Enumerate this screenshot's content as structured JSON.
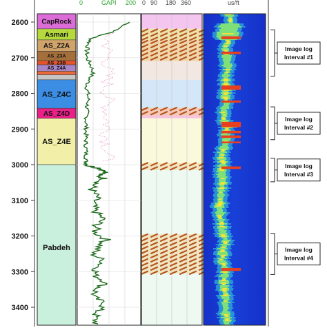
{
  "header": {
    "partial_tokens": [
      "0",
      "GAPI",
      "200",
      "0",
      "90",
      "180",
      "360",
      "us/ft"
    ]
  },
  "chart_data": {
    "type": "well-log",
    "depth_axis": {
      "ticks": [
        2600,
        2700,
        2800,
        2900,
        3000,
        3100,
        3200,
        3300,
        3400
      ],
      "range": [
        2575,
        3465
      ]
    },
    "formations": [
      {
        "name": "CapRock",
        "top": 2577,
        "bottom": 2619,
        "color": "#dc6cd8"
      },
      {
        "name": "Asmari",
        "top": 2619,
        "bottom": 2650,
        "color": "#b6d93e"
      },
      {
        "name": "AS_Z2A",
        "top": 2650,
        "bottom": 2682,
        "color": "#d0a36a"
      },
      {
        "name": "AS_Z3A",
        "top": 2682,
        "bottom": 2708,
        "color": "#a56f3c"
      },
      {
        "name": "AS_Z3B",
        "top": 2708,
        "bottom": 2720,
        "color": "#e3532c"
      },
      {
        "name": "AS_Z4A",
        "top": 2720,
        "bottom": 2738,
        "color": "#a986c8"
      },
      {
        "name": "",
        "top": 2738,
        "bottom": 2748,
        "color": "#e96a3a"
      },
      {
        "name": "",
        "top": 2748,
        "bottom": 2762,
        "color": "#c5c5c5"
      },
      {
        "name": "AS_Z4C",
        "top": 2762,
        "bottom": 2842,
        "color": "#3b8ee3"
      },
      {
        "name": "AS_Z4D",
        "top": 2842,
        "bottom": 2870,
        "color": "#ea1f89"
      },
      {
        "name": "AS_Z4E",
        "top": 2870,
        "bottom": 3000,
        "color": "#f2f0a8"
      },
      {
        "name": "Pabdeh",
        "top": 3000,
        "bottom": 3465,
        "color": "#c9f0dc"
      }
    ],
    "gamma_ray_gapi": {
      "depth": [
        2600,
        2625,
        2645,
        2660,
        2680,
        2700,
        2720,
        2740,
        2760,
        2780,
        2800,
        2820,
        2840,
        2860,
        2880,
        2900,
        2920,
        2940,
        2960,
        2980,
        2995,
        3003,
        3010,
        3020,
        3030,
        3040,
        3055,
        3070,
        3090,
        3110,
        3130,
        3150,
        3170,
        3190,
        3210,
        3230,
        3250,
        3270,
        3290,
        3310,
        3330,
        3350,
        3370,
        3390,
        3410,
        3430,
        3450
      ],
      "value": [
        165,
        120,
        45,
        35,
        30,
        30,
        42,
        50,
        38,
        30,
        33,
        35,
        30,
        30,
        28,
        28,
        27,
        27,
        28,
        28,
        28,
        35,
        70,
        95,
        62,
        88,
        55,
        45,
        62,
        50,
        55,
        80,
        62,
        55,
        92,
        68,
        48,
        84,
        62,
        55,
        92,
        60,
        50,
        88,
        65,
        55,
        60
      ]
    },
    "image_log_intervals": [
      {
        "label": "Image log Interval #1",
        "top": 2622,
        "bottom": 2752
      },
      {
        "label": "Image log Interval #2",
        "top": 2838,
        "bottom": 2930
      },
      {
        "label": "Image log Interval #3",
        "top": 2982,
        "bottom": 3048
      },
      {
        "label": "Image log Interval #4",
        "top": 3193,
        "bottom": 3308
      }
    ],
    "fracture_bands": [
      {
        "top": 2620,
        "bottom": 2650,
        "dense": true
      },
      {
        "top": 2652,
        "bottom": 2710,
        "dense": true
      },
      {
        "top": 2840,
        "bottom": 2862,
        "dense": true
      },
      {
        "top": 2995,
        "bottom": 3015,
        "dense": true
      },
      {
        "top": 3195,
        "bottom": 3305,
        "dense": true
      }
    ]
  }
}
